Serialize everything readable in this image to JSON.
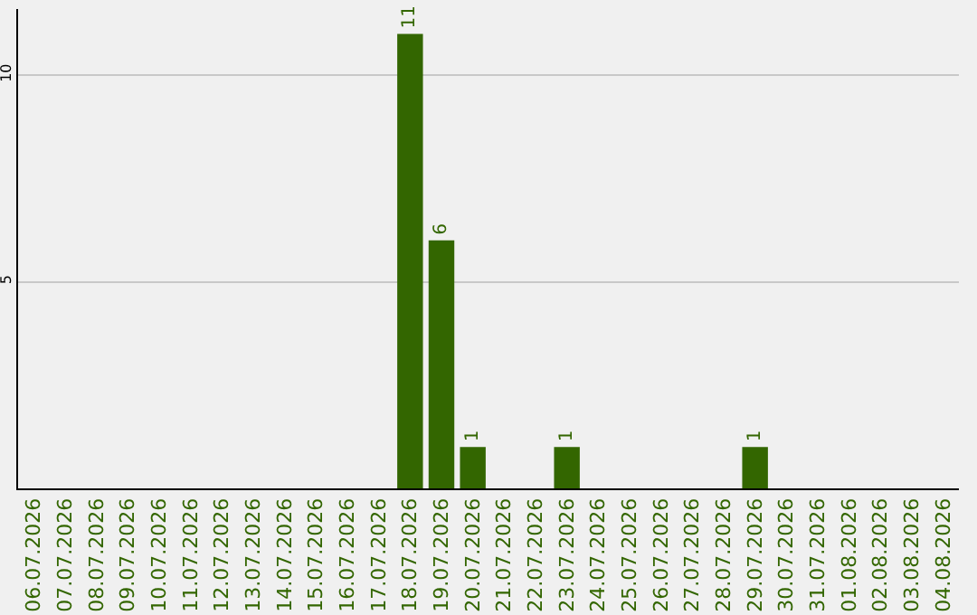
{
  "chart_data": {
    "type": "bar",
    "categories": [
      "06.07.2026",
      "07.07.2026",
      "08.07.2026",
      "09.07.2026",
      "10.07.2026",
      "11.07.2026",
      "12.07.2026",
      "13.07.2026",
      "14.07.2026",
      "15.07.2026",
      "16.07.2026",
      "17.07.2026",
      "18.07.2026",
      "19.07.2026",
      "20.07.2026",
      "21.07.2026",
      "22.07.2026",
      "23.07.2026",
      "24.07.2026",
      "25.07.2026",
      "26.07.2026",
      "27.07.2026",
      "28.07.2026",
      "29.07.2026",
      "30.07.2026",
      "31.07.2026",
      "01.08.2026",
      "02.08.2026",
      "03.08.2026",
      "04.08.2026"
    ],
    "values": [
      0,
      0,
      0,
      0,
      0,
      0,
      0,
      0,
      0,
      0,
      0,
      0,
      11,
      6,
      1,
      0,
      0,
      1,
      0,
      0,
      0,
      0,
      0,
      1,
      0,
      0,
      0,
      0,
      0,
      0
    ],
    "value_labels": [
      null,
      null,
      null,
      null,
      null,
      null,
      null,
      null,
      null,
      null,
      null,
      null,
      "11",
      "6",
      "1",
      null,
      null,
      "1",
      null,
      null,
      null,
      null,
      null,
      "1",
      null,
      null,
      null,
      null,
      null,
      null
    ],
    "color": "#336600",
    "ylim": [
      0,
      11.6
    ],
    "yticks": [
      5,
      10
    ],
    "grid": "y"
  }
}
